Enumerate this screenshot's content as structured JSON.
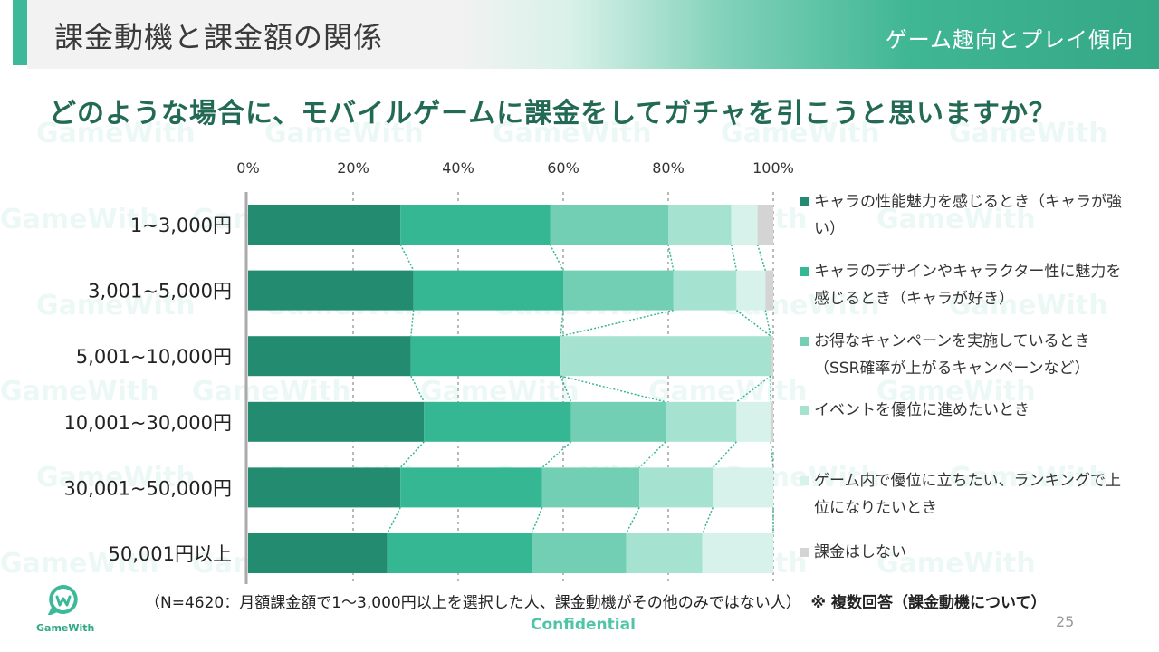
{
  "header": {
    "title": "課金動機と課金額の関係",
    "subtitle": "ゲーム趣向とプレイ傾向"
  },
  "question": "どのような場合に、モバイルゲームに課金をしてガチャを引こうと思いますか？",
  "watermark": "GameWith",
  "footer": {
    "note": "（N=4620：月額課金額で1〜3,000円以上を選択した人、課金動機がその他のみではない人）",
    "note_bold": "※ 複数回答（課金動機について）",
    "confidential": "Confidential",
    "page_number": "25",
    "logo_text": "GameWith"
  },
  "colors": {
    "s1": "#238b6f",
    "s2": "#35b793",
    "s3": "#72cfb4",
    "s4": "#a6e2d0",
    "s5": "#d7f2ea",
    "s6": "#d4d4d4",
    "connector": "#35b793",
    "accent": "#3db99a"
  },
  "chart_data": {
    "type": "bar",
    "orientation": "horizontal",
    "stacked": "100%",
    "categories": [
      "1~3,000円",
      "3,001~5,000円",
      "5,001~10,000円",
      "10,001~30,000円",
      "30,001~50,000円",
      "50,001円以上"
    ],
    "xticks": [
      "0%",
      "20%",
      "40%",
      "60%",
      "80%",
      "100%"
    ],
    "xlim": [
      0,
      100
    ],
    "legend_position": "right",
    "series": [
      {
        "name": "キャラの性能魅力を感じるとき（キャラが強い）",
        "values": [
          29,
          31.5,
          31,
          33.5,
          29,
          26.5
        ]
      },
      {
        "name": "キャラのデザインやキャラクター性に魅力を感じるとき（キャラが好き）",
        "values": [
          28.5,
          28.5,
          28.5,
          28,
          27,
          27.5
        ]
      },
      {
        "name": "お得なキャンペーンを実施しているとき（SSR確率が上がるキャンペーンなど）",
        "values": [
          22.5,
          21,
          0,
          18,
          18.5,
          18
        ]
      },
      {
        "name": "イベントを優位に進めたいとき",
        "values": [
          12,
          12,
          40,
          13.5,
          14,
          14.5
        ]
      },
      {
        "name": "ゲーム内で優位に立ちたい、ランキングで上位になりたいとき",
        "values": [
          5,
          5.5,
          0,
          6.5,
          11.5,
          13.5
        ]
      },
      {
        "name": "課金はしない",
        "values": [
          3,
          1.5,
          0.5,
          0.5,
          0,
          0
        ]
      }
    ]
  }
}
